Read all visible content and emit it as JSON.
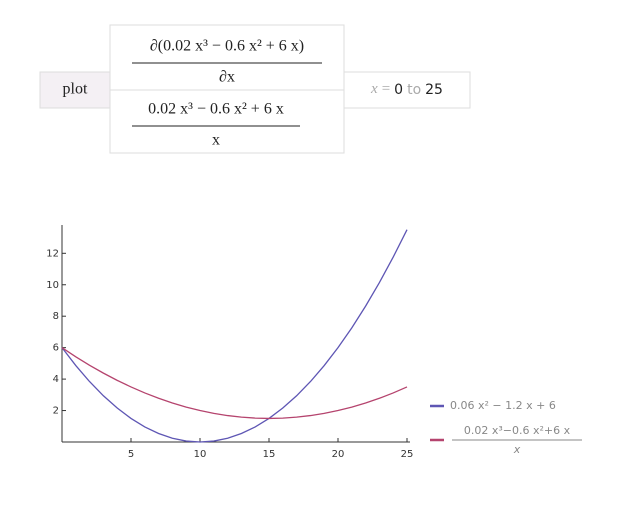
{
  "input": {
    "command": "plot",
    "expression_top": {
      "numerator": "∂(0.02 x³ − 0.6 x² + 6 x)",
      "denominator": "∂x"
    },
    "expression_bottom": {
      "numerator": "0.02 x³ − 0.6 x² + 6 x",
      "denominator": "x"
    },
    "range": {
      "variable": "x",
      "equals": "=",
      "from": "0",
      "to_word": "to",
      "to": "25"
    }
  },
  "chart_data": {
    "type": "line",
    "x": [
      0,
      1,
      2,
      3,
      4,
      5,
      6,
      7,
      8,
      9,
      10,
      11,
      12,
      13,
      14,
      15,
      16,
      17,
      18,
      19,
      20,
      21,
      22,
      23,
      24,
      25
    ],
    "series": [
      {
        "name": "0.06 x² − 1.2 x + 6",
        "color": "#5e56b4",
        "values": [
          6,
          4.86,
          3.84,
          2.94,
          2.16,
          1.5,
          0.96,
          0.54,
          0.24,
          0.06,
          0,
          0.06,
          0.24,
          0.54,
          0.96,
          1.5,
          2.16,
          2.94,
          3.84,
          4.86,
          6,
          7.26,
          8.64,
          10.14,
          11.76,
          13.5
        ]
      },
      {
        "name": {
          "numerator": "0.02 x³−0.6 x²+6 x",
          "denominator": "x"
        },
        "color": "#b5446e",
        "values": [
          6,
          5.42,
          4.88,
          4.38,
          3.92,
          3.5,
          3.12,
          2.78,
          2.48,
          2.22,
          2,
          1.82,
          1.68,
          1.58,
          1.52,
          1.5,
          1.52,
          1.58,
          1.68,
          1.82,
          2,
          2.22,
          2.48,
          2.78,
          3.12,
          3.5
        ]
      }
    ],
    "xlim": [
      0,
      25
    ],
    "ylim": [
      0,
      13.8
    ],
    "xticks": [
      5,
      10,
      15,
      20,
      25
    ],
    "yticks": [
      2,
      4,
      6,
      8,
      10,
      12
    ]
  }
}
